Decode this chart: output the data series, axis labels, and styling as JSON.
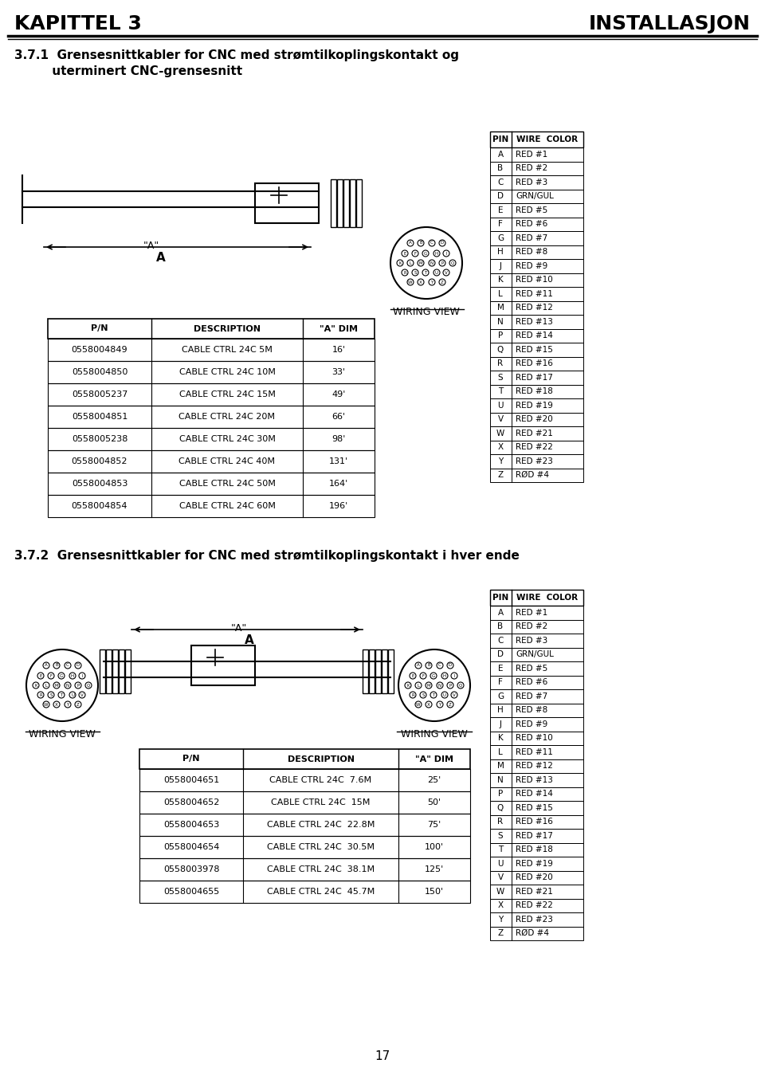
{
  "header_left": "KAPITTEL 3",
  "header_right": "INSTALLASJON",
  "section1_title": "3.7.1  Grensesnittkabler for CNC med strømtilkoplingskontakt og\n         uterminert CNC-grensesnitt",
  "section2_title": "3.7.2  Grensesnittkabler for CNC med strømtilkoplingskontakt i hver ende",
  "table1_headers": [
    "P/N",
    "DESCRIPTION",
    "\"A\" DIM"
  ],
  "table1_rows": [
    [
      "0558004849",
      "CABLE CTRL 24C 5M",
      "16'"
    ],
    [
      "0558004850",
      "CABLE CTRL 24C 10M",
      "33'"
    ],
    [
      "0558005237",
      "CABLE CTRL 24C 15M",
      "49'"
    ],
    [
      "0558004851",
      "CABLE CTRL 24C 20M",
      "66'"
    ],
    [
      "0558005238",
      "CABLE CTRL 24C 30M",
      "98'"
    ],
    [
      "0558004852",
      "CABLE CTRL 24C 40M",
      "131'"
    ],
    [
      "0558004853",
      "CABLE CTRL 24C 50M",
      "164'"
    ],
    [
      "0558004854",
      "CABLE CTRL 24C 60M",
      "196'"
    ]
  ],
  "table2_headers": [
    "P/N",
    "DESCRIPTION",
    "\"A\" DIM"
  ],
  "table2_rows": [
    [
      "0558004651",
      "CABLE CTRL 24C  7.6M",
      "25'"
    ],
    [
      "0558004652",
      "CABLE CTRL 24C  15M",
      "50'"
    ],
    [
      "0558004653",
      "CABLE CTRL 24C  22.8M",
      "75'"
    ],
    [
      "0558004654",
      "CABLE CTRL 24C  30.5M",
      "100'"
    ],
    [
      "0558003978",
      "CABLE CTRL 24C  38.1M",
      "125'"
    ],
    [
      "0558004655",
      "CABLE CTRL 24C  45.7M",
      "150'"
    ]
  ],
  "wire_table_pins": [
    "A",
    "B",
    "C",
    "D",
    "E",
    "F",
    "G",
    "H",
    "J",
    "K",
    "L",
    "M",
    "N",
    "P",
    "Q",
    "R",
    "S",
    "T",
    "U",
    "V",
    "W",
    "X",
    "Y",
    "Z"
  ],
  "wire_table_colors": [
    "RED #1",
    "RED #2",
    "RED #3",
    "GRN/GUL",
    "RED #5",
    "RED #6",
    "RED #7",
    "RED #8",
    "RED #9",
    "RED #10",
    "RED #11",
    "RED #12",
    "RED #13",
    "RED #14",
    "RED #15",
    "RED #16",
    "RED #17",
    "RED #18",
    "RED #19",
    "RED #20",
    "RED #21",
    "RED #22",
    "RED #23",
    "RØD #4"
  ],
  "page_number": "17",
  "bg_color": "#ffffff",
  "text_color": "#000000"
}
